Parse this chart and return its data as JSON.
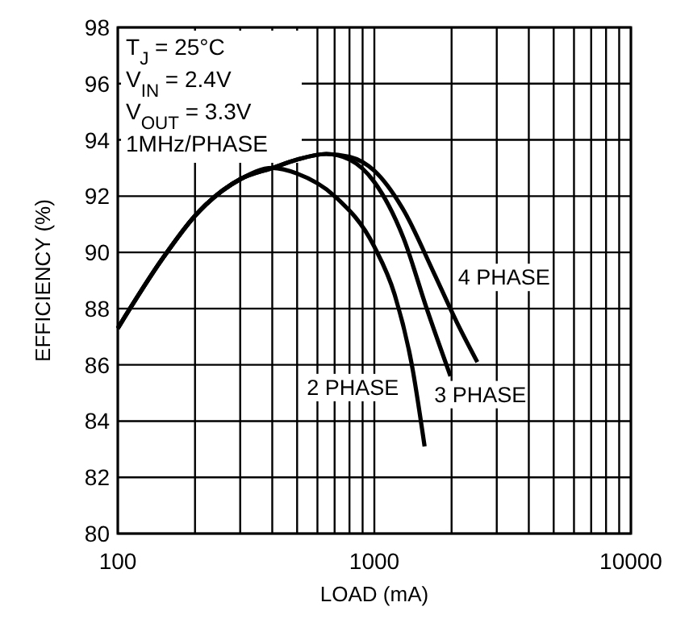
{
  "chart_data": {
    "type": "line",
    "xlabel": "LOAD (mA)",
    "ylabel": "EFFICIENCY (%)",
    "log": "x",
    "grid": true,
    "line_style": "solid",
    "marker": "none",
    "xlim": [
      100,
      10000
    ],
    "xticks": [
      100,
      {
        "value": 200,
        "label": null
      },
      {
        "value": 300,
        "label": null
      },
      {
        "value": 400,
        "label": null
      },
      {
        "value": 500,
        "label": null
      },
      {
        "value": 600,
        "label": null
      },
      {
        "value": 700,
        "label": null
      },
      {
        "value": 800,
        "label": null
      },
      {
        "value": 900,
        "label": null
      },
      1000,
      {
        "value": 2000,
        "label": null
      },
      {
        "value": 3000,
        "label": null
      },
      {
        "value": 4000,
        "label": null
      },
      {
        "value": 5000,
        "label": null
      },
      {
        "value": 6000,
        "label": null
      },
      {
        "value": 7000,
        "label": null
      },
      {
        "value": 8000,
        "label": null
      },
      {
        "value": 9000,
        "label": null
      },
      10000
    ],
    "ylim": [
      80,
      98
    ],
    "yticks": [
      80,
      82,
      84,
      86,
      88,
      90,
      92,
      94,
      96,
      98
    ],
    "annotations": [
      "T$_{J}$ = 25°C",
      "V$_{IN}$ = 2.4V",
      "V$_{OUT}$ = 3.3V",
      "1MHz/PHASE"
    ],
    "series": [
      {
        "name": "2 PHASE",
        "color": "#000000",
        "x": [
          100,
          150,
          200,
          300,
          400,
          500,
          700,
          1000,
          1200,
          1400,
          1570
        ],
        "values": [
          87.3,
          89.8,
          91.3,
          92.6,
          93.0,
          92.8,
          92.0,
          90.2,
          88.5,
          86.0,
          83.1
        ]
      },
      {
        "name": "3 PHASE",
        "color": "#000000",
        "x": [
          100,
          150,
          200,
          300,
          400,
          500,
          650,
          800,
          1000,
          1300,
          1600,
          1980
        ],
        "values": [
          87.3,
          89.8,
          91.3,
          92.6,
          93.0,
          93.3,
          93.5,
          93.3,
          92.5,
          90.5,
          88.0,
          85.6
        ]
      },
      {
        "name": "4 PHASE",
        "color": "#000000",
        "x": [
          100,
          150,
          200,
          300,
          400,
          500,
          650,
          800,
          1000,
          1300,
          1700,
          2100,
          2520
        ],
        "values": [
          87.3,
          89.8,
          91.3,
          92.6,
          93.0,
          93.3,
          93.5,
          93.4,
          92.9,
          91.5,
          89.3,
          87.5,
          86.1
        ]
      }
    ]
  }
}
